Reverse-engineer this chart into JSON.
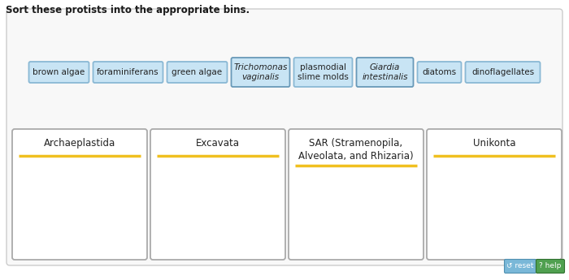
{
  "title": "Sort these protists into the appropriate bins.",
  "chips": [
    {
      "label": "brown algae",
      "italic": false
    },
    {
      "label": "foraminiferans",
      "italic": false
    },
    {
      "label": "green algae",
      "italic": false
    },
    {
      "label": "Trichomonas\nvaginalis",
      "italic": true
    },
    {
      "label": "plasmodial\nslime molds",
      "italic": false
    },
    {
      "label": "Giardia\nintestinalis",
      "italic": true
    },
    {
      "label": "diatoms",
      "italic": false
    },
    {
      "label": "dinoflagellates",
      "italic": false
    }
  ],
  "bins": [
    {
      "label": "Archaeplastida"
    },
    {
      "label": "Excavata"
    },
    {
      "label": "SAR (Stramenopila,\nAlveolata, and Rhizaria)"
    },
    {
      "label": "Unikonta"
    }
  ],
  "chip_bg": "#c8e4f4",
  "chip_border": "#8ab8d4",
  "chip_border_italic": "#6899b8",
  "bin_border": "#aaaaaa",
  "bin_bg": "#ffffff",
  "outer_bg": "#f8f8f8",
  "outer_border": "#cccccc",
  "page_bg": "#ffffff",
  "title_fontsize": 8.5,
  "chip_fontsize": 7.5,
  "bin_label_fontsize": 8.5,
  "yellow_line_color": "#f0c020",
  "reset_btn_bg": "#7ab8d8",
  "reset_btn_border": "#5090b0",
  "help_btn_bg": "#50a050",
  "help_btn_border": "#307030"
}
